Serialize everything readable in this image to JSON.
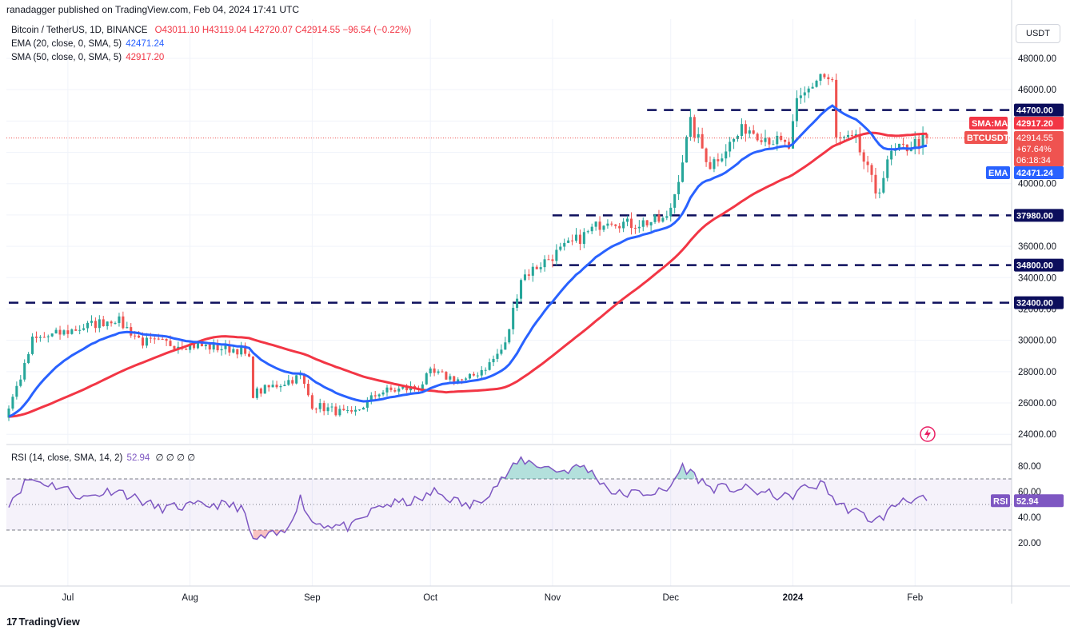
{
  "header": {
    "published": "ranadagger published on TradingView.com, Feb 04, 2024 17:41 UTC"
  },
  "legend": {
    "symbol": "Bitcoin / TetherUS, 1D, BINANCE",
    "ohlc": "O43011.10 H43119.04 L42720.07 C42914.55 −96.54 (−0.22%)",
    "ema_label": "EMA (20, close, 0, SMA, 5)",
    "ema_value": "42471.24",
    "sma_label": "SMA (50, close, 0, SMA, 5)",
    "sma_value": "42917.20",
    "rsi_label": "RSI (14, close, SMA, 14, 2)",
    "rsi_value": "52.94",
    "rsi_extra": "∅ ∅ ∅ ∅"
  },
  "currency_button": "USDT",
  "footer": {
    "brand": "TradingView",
    "logo": "17"
  },
  "colors": {
    "up": "#26a69a",
    "down": "#ef5350",
    "ema": "#2962ff",
    "sma": "#f23645",
    "rsi": "#7e57c2",
    "level": "#0c0e5c"
  },
  "chart_data": {
    "type": "candlestick",
    "title": "Bitcoin / TetherUS, 1D, BINANCE",
    "price_axis": {
      "ticks": [
        "24000.00",
        "26000.00",
        "28000.00",
        "30000.00",
        "32000.00",
        "34000.00",
        "36000.00",
        "38000.00",
        "40000.00",
        "42000.00",
        "44000.00",
        "46000.00",
        "48000.00"
      ],
      "range": [
        23400,
        50500
      ]
    },
    "time_axis": {
      "ticks": [
        "Jul",
        "Aug",
        "Sep",
        "Oct",
        "Nov",
        "Dec",
        "2024",
        "Feb"
      ]
    },
    "horizontal_levels": [
      "44700.00",
      "37980.00",
      "34800.00",
      "32400.00"
    ],
    "price_labels": [
      {
        "name": "SMA:MA",
        "value": "42917.20"
      },
      {
        "name": "BTCUSDT",
        "value": "42914.55",
        "change": "+67.64%",
        "countdown": "06:18:34"
      },
      {
        "name": "EMA",
        "value": "42471.24"
      }
    ],
    "close_anchors": [
      [
        "2023-06-15",
        25100
      ],
      [
        "2023-06-20",
        28300
      ],
      [
        "2023-06-22",
        30000
      ],
      [
        "2023-06-30",
        30500
      ],
      [
        "2023-07-13",
        31400
      ],
      [
        "2023-07-20",
        29900
      ],
      [
        "2023-08-01",
        29700
      ],
      [
        "2023-08-14",
        29400
      ],
      [
        "2023-08-16",
        28700
      ],
      [
        "2023-08-17",
        26600
      ],
      [
        "2023-08-29",
        27700
      ],
      [
        "2023-09-01",
        25900
      ],
      [
        "2023-09-11",
        25200
      ],
      [
        "2023-09-18",
        26700
      ],
      [
        "2023-09-28",
        27000
      ],
      [
        "2023-10-01",
        27900
      ],
      [
        "2023-10-10",
        27400
      ],
      [
        "2023-10-16",
        28500
      ],
      [
        "2023-10-20",
        29700
      ],
      [
        "2023-10-23",
        33000
      ],
      [
        "2023-10-24",
        34000
      ],
      [
        "2023-11-01",
        35400
      ],
      [
        "2023-11-09",
        36700
      ],
      [
        "2023-11-15",
        37800
      ],
      [
        "2023-11-20",
        37400
      ],
      [
        "2023-11-30",
        37700
      ],
      [
        "2023-12-02",
        39400
      ],
      [
        "2023-12-06",
        43800
      ],
      [
        "2023-12-11",
        41200
      ],
      [
        "2023-12-20",
        43600
      ],
      [
        "2023-12-31",
        42300
      ],
      [
        "2024-01-02",
        45000
      ],
      [
        "2024-01-08",
        47000
      ],
      [
        "2024-01-11",
        46400
      ],
      [
        "2024-01-12",
        42800
      ],
      [
        "2024-01-17",
        42700
      ],
      [
        "2024-01-22",
        39500
      ],
      [
        "2024-01-23",
        39800
      ],
      [
        "2024-01-26",
        41900
      ],
      [
        "2024-02-04",
        42900
      ]
    ],
    "moving_averages": [
      {
        "name": "EMA (20)",
        "last": 42471.24
      },
      {
        "name": "SMA (50)",
        "last": 42917.2
      }
    ],
    "rsi": {
      "axis_ticks": [
        "20.00",
        "40.00",
        "60.00",
        "80.00"
      ],
      "bands": [
        30,
        70
      ],
      "last": 52.94,
      "anchors": [
        [
          "2023-06-15",
          48
        ],
        [
          "2023-06-21",
          70
        ],
        [
          "2023-06-30",
          63
        ],
        [
          "2023-07-05",
          55
        ],
        [
          "2023-07-13",
          62
        ],
        [
          "2023-07-24",
          47
        ],
        [
          "2023-08-08",
          50
        ],
        [
          "2023-08-14",
          48
        ],
        [
          "2023-08-17",
          22
        ],
        [
          "2023-08-25",
          28
        ],
        [
          "2023-08-29",
          55
        ],
        [
          "2023-09-01",
          36
        ],
        [
          "2023-09-11",
          32
        ],
        [
          "2023-09-18",
          49
        ],
        [
          "2023-09-28",
          53
        ],
        [
          "2023-10-02",
          60
        ],
        [
          "2023-10-11",
          48
        ],
        [
          "2023-10-16",
          60
        ],
        [
          "2023-10-20",
          72
        ],
        [
          "2023-10-24",
          85
        ],
        [
          "2023-11-03",
          76
        ],
        [
          "2023-11-09",
          80
        ],
        [
          "2023-11-17",
          58
        ],
        [
          "2023-11-30",
          60
        ],
        [
          "2023-12-04",
          80
        ],
        [
          "2023-12-11",
          63
        ],
        [
          "2023-12-20",
          62
        ],
        [
          "2023-12-31",
          55
        ],
        [
          "2024-01-03",
          62
        ],
        [
          "2024-01-09",
          66
        ],
        [
          "2024-01-12",
          51
        ],
        [
          "2024-01-22",
          37
        ],
        [
          "2024-01-24",
          41
        ],
        [
          "2024-01-29",
          55
        ],
        [
          "2024-02-04",
          53
        ]
      ]
    }
  }
}
